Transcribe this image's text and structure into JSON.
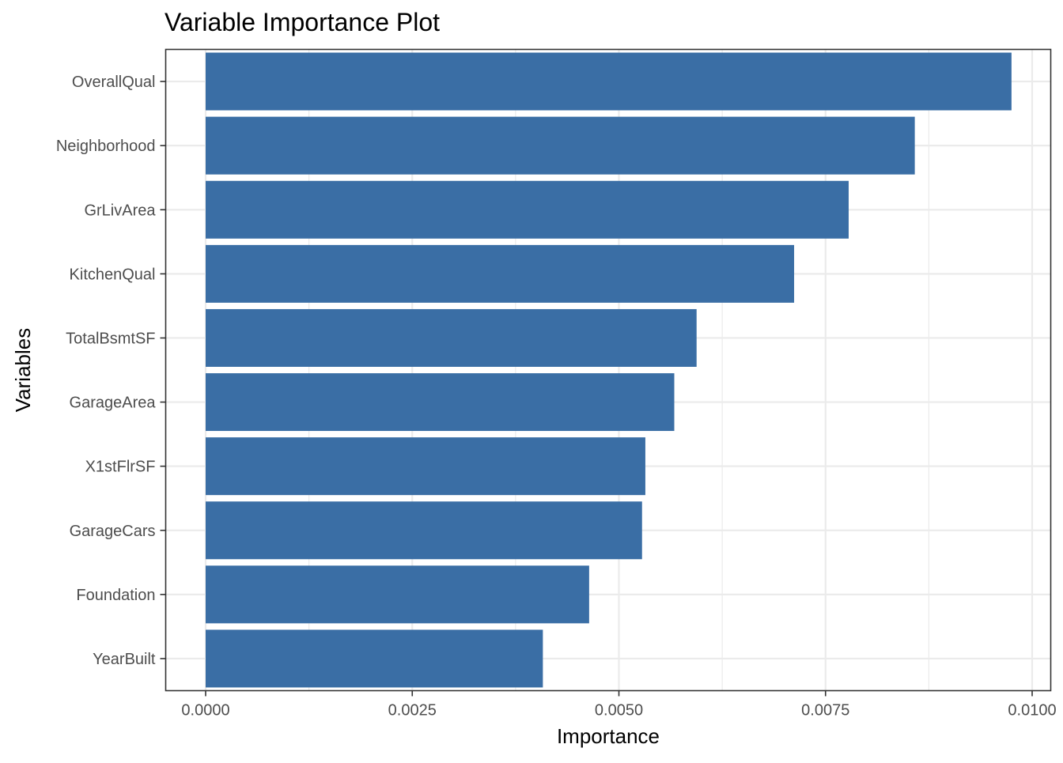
{
  "chart_data": {
    "type": "bar",
    "orientation": "horizontal",
    "title": "Variable Importance Plot",
    "xlabel": "Importance",
    "ylabel": "Variables",
    "categories": [
      "OverallQual",
      "Neighborhood",
      "GrLivArea",
      "KitchenQual",
      "TotalBsmtSF",
      "GarageArea",
      "X1stFlrSF",
      "GarageCars",
      "Foundation",
      "YearBuilt"
    ],
    "values": [
      0.00975,
      0.00858,
      0.00778,
      0.00712,
      0.00594,
      0.00567,
      0.00532,
      0.00528,
      0.00464,
      0.00408
    ],
    "xlim": [
      0,
      0.01
    ],
    "x_ticks": [
      "0.0000",
      "0.0025",
      "0.0050",
      "0.0075",
      "0.0100"
    ],
    "grid": true,
    "legend": "none",
    "colors": {
      "bar": "#3A6EA5",
      "grid": "#EBEBEB",
      "panel_border": "#333333",
      "tick_text": "#4D4D4D"
    }
  }
}
